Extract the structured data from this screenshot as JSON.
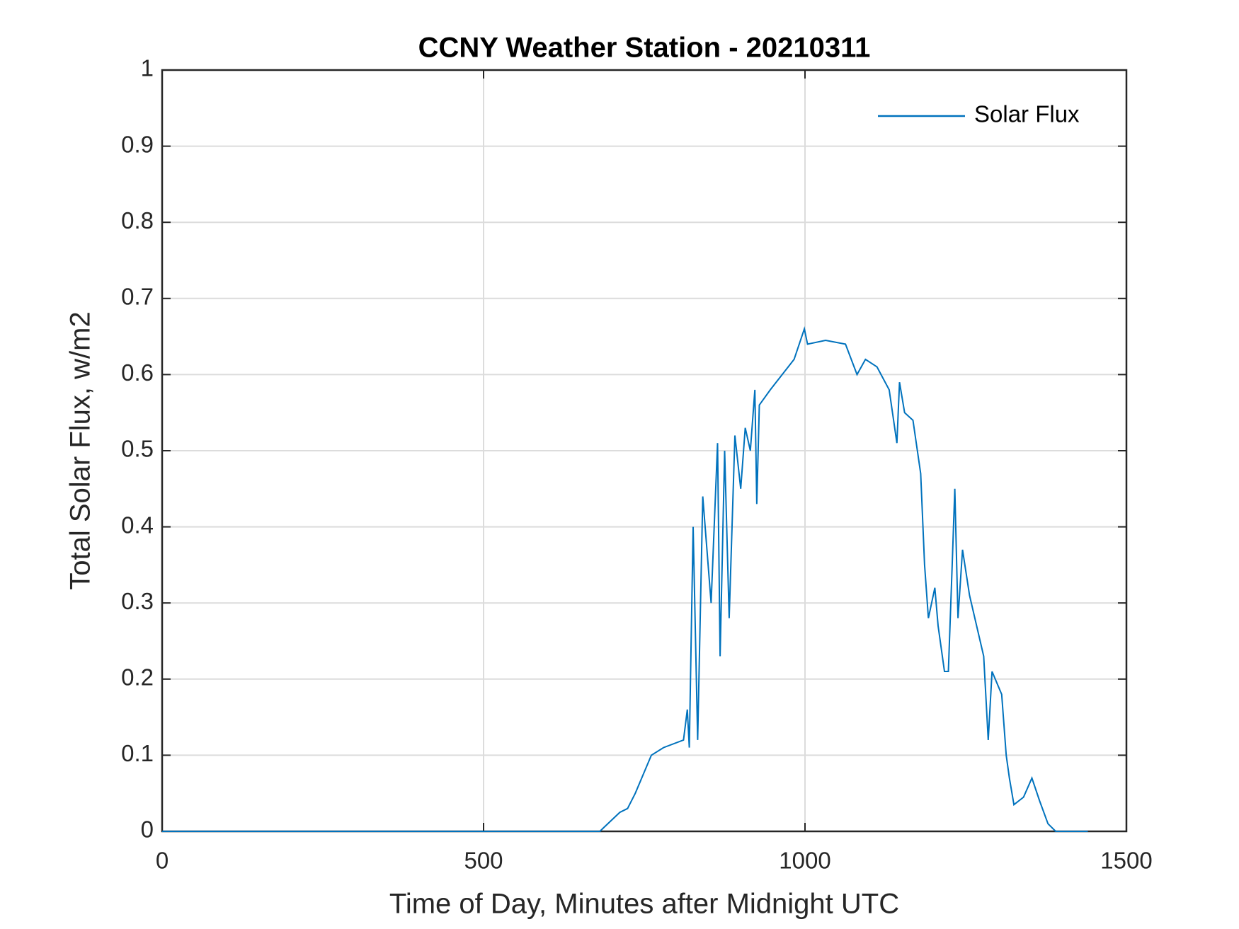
{
  "chart_data": {
    "type": "line",
    "title": "CCNY Weather Station - 20210311",
    "x_label": "Time of Day, Minutes after Midnight UTC",
    "y_label": "Total Solar Flux, w/m2",
    "xlim": [
      0,
      1500
    ],
    "xticks": [
      0,
      500,
      1000,
      1500
    ],
    "ylim": [
      0,
      1
    ],
    "yticks": [
      0,
      0.1,
      0.2,
      0.3,
      0.4,
      0.5,
      0.6,
      0.7,
      0.8,
      0.9,
      1
    ],
    "grid": true,
    "legend": "top-right",
    "series": [
      {
        "name": "Solar Flux",
        "color": "#0072bd",
        "x": [
          0,
          681,
          687,
          712,
          724,
          736,
          761,
          780,
          811,
          817,
          820,
          826,
          833,
          841,
          854,
          864,
          868,
          875,
          882,
          891,
          900,
          907,
          915,
          922,
          925,
          929,
          946,
          983,
          999,
          1004,
          1032,
          1063,
          1081,
          1094,
          1112,
          1131,
          1143,
          1147,
          1155,
          1168,
          1180,
          1186,
          1192,
          1202,
          1207,
          1217,
          1223,
          1229,
          1233,
          1238,
          1245,
          1256,
          1278,
          1285,
          1291,
          1306,
          1313,
          1318,
          1325,
          1340,
          1353,
          1365,
          1378,
          1390,
          1440
        ],
        "values": [
          0,
          0,
          0.005,
          0.025,
          0.03,
          0.05,
          0.1,
          0.11,
          0.12,
          0.16,
          0.11,
          0.4,
          0.12,
          0.44,
          0.3,
          0.51,
          0.23,
          0.5,
          0.28,
          0.52,
          0.45,
          0.53,
          0.5,
          0.58,
          0.43,
          0.56,
          0.58,
          0.62,
          0.66,
          0.64,
          0.645,
          0.64,
          0.6,
          0.62,
          0.61,
          0.58,
          0.51,
          0.59,
          0.55,
          0.54,
          0.47,
          0.35,
          0.28,
          0.32,
          0.27,
          0.21,
          0.21,
          0.35,
          0.45,
          0.28,
          0.37,
          0.31,
          0.23,
          0.12,
          0.21,
          0.18,
          0.1,
          0.07,
          0.035,
          0.045,
          0.07,
          0.04,
          0.01,
          0,
          0
        ]
      }
    ]
  }
}
